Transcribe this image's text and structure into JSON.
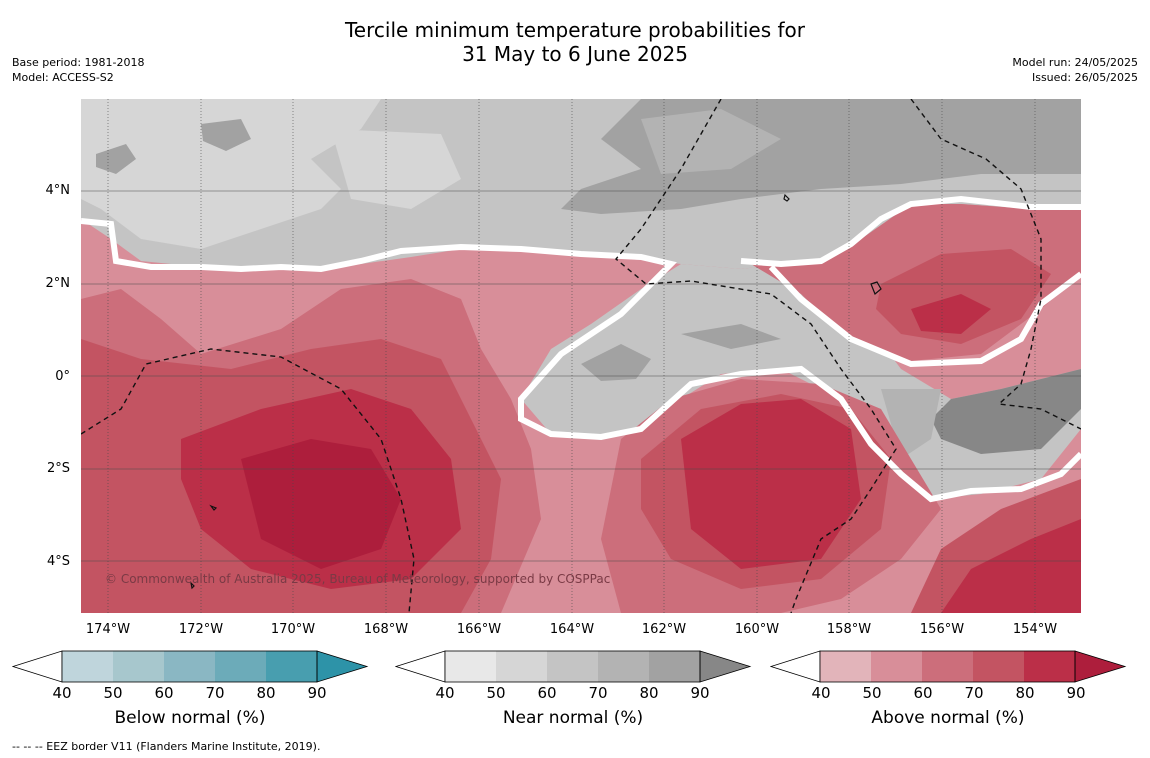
{
  "title_line1": "Tercile minimum temperature probabilities for",
  "title_line2": "31 May to 6 June 2025",
  "meta_left": {
    "base_period": "Base period: 1981-2018",
    "model": "Model: ACCESS-S2"
  },
  "meta_right": {
    "model_run": "Model run: 24/05/2025",
    "issued": "Issued: 26/05/2025"
  },
  "copyright": "© Commonwealth of Australia 2025, Bureau of Meteorology, supported by COSPPac",
  "lat_labels": [
    "4°N",
    "2°N",
    "0°",
    "2°S",
    "4°S"
  ],
  "lon_labels": [
    "174°W",
    "172°W",
    "170°W",
    "168°W",
    "166°W",
    "164°W",
    "162°W",
    "160°W",
    "158°W",
    "156°W",
    "154°W"
  ],
  "colorbars": [
    {
      "label": "Below normal (%)",
      "ticks": [
        "40",
        "50",
        "60",
        "70",
        "80",
        "90"
      ],
      "colors": [
        "#ffffff",
        "#bfd5dc",
        "#a7c7cd",
        "#8ab7c3",
        "#6cabb9",
        "#489eaf",
        "#2d93a8"
      ]
    },
    {
      "label": "Near normal (%)",
      "ticks": [
        "40",
        "50",
        "60",
        "70",
        "80",
        "90"
      ],
      "colors": [
        "#ffffff",
        "#e8e8e8",
        "#d6d6d6",
        "#c4c4c4",
        "#b3b3b3",
        "#a2a2a2",
        "#878787"
      ]
    },
    {
      "label": "Above normal (%)",
      "ticks": [
        "40",
        "50",
        "60",
        "70",
        "80",
        "90"
      ],
      "colors": [
        "#ffffff",
        "#e2b4ba",
        "#d88e99",
        "#cc6e7b",
        "#c35462",
        "#bb2f48",
        "#ad1e3c"
      ]
    }
  ],
  "footnote": "--  --  -- EEZ border V11 (Flanders Marine Institute, 2019)."
}
